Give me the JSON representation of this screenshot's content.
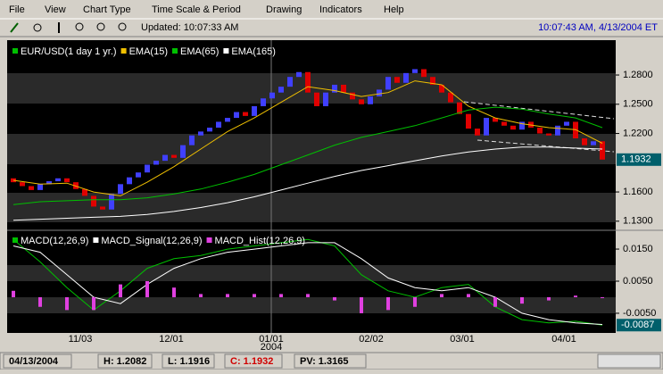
{
  "menu": [
    "File",
    "View",
    "Chart Type",
    "Time Scale & Period",
    "Drawing",
    "Indicators",
    "Help"
  ],
  "toolbar": {
    "updated": "Updated: 10:07:33 AM",
    "clock": "10:07:43 AM, 4/13/2004 ET"
  },
  "x_axis": {
    "labels": [
      "11/03",
      "12/01",
      "01/01",
      "02/02",
      "03/01",
      "04/01"
    ],
    "year": "2004"
  },
  "status": {
    "date": "04/13/2004",
    "high": "H: 1.2082",
    "low": "L: 1.1916",
    "close": "C: 1.1932",
    "pv": "PV: 1.3165"
  },
  "chart_data": [
    {
      "type": "candlestick",
      "name": "EUR/USD(1 day  1 yr.)",
      "legend_color": "#00c000",
      "up_color": "#4040ff",
      "down_color": "#e00000",
      "open": [
        1.174,
        1.17,
        1.166,
        1.162,
        1.168,
        1.171,
        1.174,
        1.17,
        1.163,
        1.156,
        1.145,
        1.142,
        1.158,
        1.168,
        1.175,
        1.18,
        1.188,
        1.192,
        1.198,
        1.195,
        1.208,
        1.218,
        1.222,
        1.226,
        1.232,
        1.236,
        1.242,
        1.238,
        1.248,
        1.256,
        1.262,
        1.268,
        1.278,
        1.283,
        1.262,
        1.248,
        1.262,
        1.27,
        1.262,
        1.255,
        1.25,
        1.258,
        1.265,
        1.278,
        1.272,
        1.282,
        1.286,
        1.278,
        1.27,
        1.262,
        1.252,
        1.24,
        1.225,
        1.218,
        1.236,
        1.232,
        1.228,
        1.224,
        1.232,
        1.226,
        1.22,
        1.218,
        1.228,
        1.232,
        1.215,
        1.208,
        1.212
      ],
      "close": [
        1.17,
        1.166,
        1.162,
        1.168,
        1.171,
        1.174,
        1.17,
        1.163,
        1.156,
        1.145,
        1.142,
        1.158,
        1.168,
        1.175,
        1.18,
        1.188,
        1.192,
        1.198,
        1.195,
        1.208,
        1.218,
        1.222,
        1.226,
        1.232,
        1.236,
        1.242,
        1.238,
        1.248,
        1.256,
        1.262,
        1.268,
        1.278,
        1.283,
        1.262,
        1.248,
        1.262,
        1.27,
        1.262,
        1.255,
        1.25,
        1.258,
        1.265,
        1.278,
        1.272,
        1.282,
        1.286,
        1.278,
        1.27,
        1.262,
        1.252,
        1.24,
        1.225,
        1.218,
        1.236,
        1.232,
        1.228,
        1.224,
        1.232,
        1.226,
        1.22,
        1.218,
        1.228,
        1.232,
        1.215,
        1.208,
        1.212,
        1.1932
      ],
      "series": [
        {
          "name": "EMA(15)",
          "color": "#f0c000",
          "values": [
            1.172,
            1.168,
            1.169,
            1.16,
            1.156,
            1.17,
            1.186,
            1.204,
            1.222,
            1.236,
            1.252,
            1.268,
            1.264,
            1.258,
            1.262,
            1.274,
            1.27,
            1.248,
            1.236,
            1.23,
            1.226,
            1.224,
            1.21
          ]
        },
        {
          "name": "EMA(65)",
          "color": "#00c000",
          "values": [
            1.147,
            1.15,
            1.151,
            1.152,
            1.152,
            1.154,
            1.158,
            1.163,
            1.17,
            1.178,
            1.188,
            1.198,
            1.208,
            1.216,
            1.222,
            1.228,
            1.236,
            1.244,
            1.247,
            1.245,
            1.24,
            1.236,
            1.226
          ]
        },
        {
          "name": "EMA(165)",
          "color": "#ffffff",
          "values": [
            1.131,
            1.132,
            1.133,
            1.134,
            1.135,
            1.137,
            1.14,
            1.144,
            1.149,
            1.155,
            1.162,
            1.169,
            1.176,
            1.182,
            1.187,
            1.192,
            1.197,
            1.201,
            1.204,
            1.206,
            1.206,
            1.205,
            1.204
          ]
        }
      ],
      "ylim": [
        1.1225,
        1.313
      ],
      "yticks": [
        {
          "value": 1.28,
          "label": "1.2800"
        },
        {
          "value": 1.25,
          "label": "1.2500"
        },
        {
          "value": 1.22,
          "label": "1.2200"
        },
        {
          "value": 1.16,
          "label": "1.1600"
        },
        {
          "value": 1.13,
          "label": "1.1300"
        }
      ]
    },
    {
      "type": "line",
      "series": [
        {
          "name": "MACD(12,26,9)",
          "color": "#00c000",
          "values": [
            0.018,
            0.011,
            0.003,
            -0.004,
            0.002,
            0.009,
            0.012,
            0.013,
            0.015,
            0.016,
            0.017,
            0.018,
            0.016,
            0.007,
            0.002,
            0.0,
            0.003,
            0.004,
            -0.003,
            -0.007,
            -0.008,
            -0.0075,
            -0.0087
          ]
        },
        {
          "name": "MACD_Signal(12,26,9)",
          "color": "#ffffff",
          "values": [
            0.016,
            0.014,
            0.007,
            0.0,
            -0.002,
            0.004,
            0.009,
            0.012,
            0.014,
            0.015,
            0.016,
            0.017,
            0.017,
            0.012,
            0.006,
            0.003,
            0.002,
            0.003,
            0.0,
            -0.005,
            -0.007,
            -0.008,
            -0.0085
          ]
        },
        {
          "name": "MACD_Hist(12,26,9)",
          "color": "#e040e0",
          "kind": "bar",
          "values": [
            0.002,
            -0.003,
            -0.004,
            -0.004,
            0.004,
            0.005,
            0.003,
            0.001,
            0.001,
            0.001,
            0.001,
            0.001,
            -0.001,
            -0.005,
            -0.004,
            -0.003,
            0.001,
            0.001,
            -0.003,
            -0.002,
            -0.001,
            0.0005,
            -0.0002
          ]
        }
      ],
      "ylim": [
        -0.0103,
        0.0203
      ],
      "yticks": [
        {
          "value": 0.015,
          "label": "0.0150"
        },
        {
          "value": 0.005,
          "label": "0.0050"
        },
        {
          "value": -0.005,
          "label": "-0.0050"
        }
      ]
    }
  ]
}
